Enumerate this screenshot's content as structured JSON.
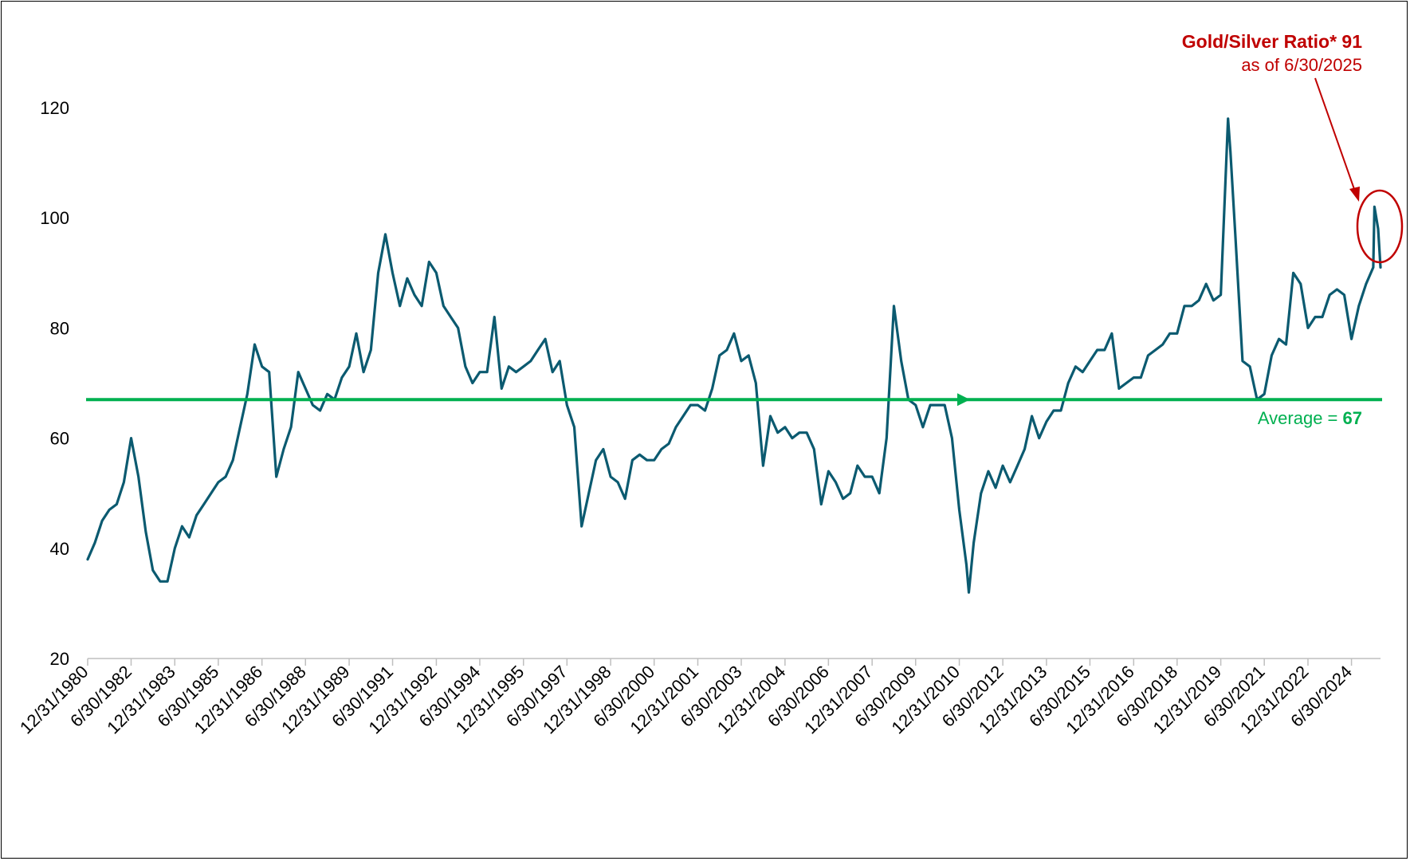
{
  "chart_data": {
    "type": "line",
    "title": "",
    "xlabel": "",
    "ylabel": "",
    "ylim": [
      20,
      125
    ],
    "yticks": [
      20,
      40,
      60,
      80,
      100,
      120
    ],
    "x_start": "12/31/1980",
    "x_end": "6/30/2025",
    "x_tick_labels": [
      "12/31/1980",
      "6/30/1982",
      "12/31/1983",
      "6/30/1985",
      "12/31/1986",
      "6/30/1988",
      "12/31/1989",
      "6/30/1991",
      "12/31/1992",
      "6/30/1994",
      "12/31/1995",
      "6/30/1997",
      "12/31/1998",
      "6/30/2000",
      "12/31/2001",
      "6/30/2003",
      "12/31/2004",
      "6/30/2006",
      "12/31/2007",
      "6/30/2009",
      "12/31/2010",
      "6/30/2012",
      "12/31/2013",
      "6/30/2015",
      "12/31/2016",
      "6/30/2018",
      "12/31/2019",
      "6/30/2021",
      "12/31/2022",
      "6/30/2024"
    ],
    "grid": false,
    "series": [
      {
        "color": "#0b5a70",
        "points": [
          [
            "1980-12-31",
            38
          ],
          [
            "1981-03-31",
            41
          ],
          [
            "1981-06-30",
            45
          ],
          [
            "1981-09-30",
            47
          ],
          [
            "1981-12-31",
            48
          ],
          [
            "1982-03-31",
            52
          ],
          [
            "1982-06-30",
            60
          ],
          [
            "1982-09-30",
            53
          ],
          [
            "1982-12-31",
            43
          ],
          [
            "1983-03-31",
            36
          ],
          [
            "1983-06-30",
            34
          ],
          [
            "1983-09-30",
            34
          ],
          [
            "1983-12-31",
            40
          ],
          [
            "1984-03-31",
            44
          ],
          [
            "1984-06-30",
            42
          ],
          [
            "1984-09-30",
            46
          ],
          [
            "1984-12-31",
            48
          ],
          [
            "1985-03-31",
            50
          ],
          [
            "1985-06-30",
            52
          ],
          [
            "1985-09-30",
            53
          ],
          [
            "1985-12-31",
            56
          ],
          [
            "1986-03-31",
            62
          ],
          [
            "1986-06-30",
            68
          ],
          [
            "1986-09-30",
            77
          ],
          [
            "1986-12-31",
            73
          ],
          [
            "1987-03-31",
            72
          ],
          [
            "1987-06-30",
            53
          ],
          [
            "1987-09-30",
            58
          ],
          [
            "1987-12-31",
            62
          ],
          [
            "1988-03-31",
            72
          ],
          [
            "1988-06-30",
            69
          ],
          [
            "1988-09-30",
            66
          ],
          [
            "1988-12-31",
            65
          ],
          [
            "1989-03-31",
            68
          ],
          [
            "1989-06-30",
            67
          ],
          [
            "1989-09-30",
            71
          ],
          [
            "1989-12-31",
            73
          ],
          [
            "1990-03-31",
            79
          ],
          [
            "1990-06-30",
            72
          ],
          [
            "1990-09-30",
            76
          ],
          [
            "1990-12-31",
            90
          ],
          [
            "1991-03-31",
            97
          ],
          [
            "1991-06-30",
            90
          ],
          [
            "1991-09-30",
            84
          ],
          [
            "1991-12-31",
            89
          ],
          [
            "1992-03-31",
            86
          ],
          [
            "1992-06-30",
            84
          ],
          [
            "1992-09-30",
            92
          ],
          [
            "1992-12-31",
            90
          ],
          [
            "1993-03-31",
            84
          ],
          [
            "1993-06-30",
            82
          ],
          [
            "1993-09-30",
            80
          ],
          [
            "1993-12-31",
            73
          ],
          [
            "1994-03-31",
            70
          ],
          [
            "1994-06-30",
            72
          ],
          [
            "1994-09-30",
            72
          ],
          [
            "1994-12-31",
            82
          ],
          [
            "1995-03-31",
            69
          ],
          [
            "1995-06-30",
            73
          ],
          [
            "1995-09-30",
            72
          ],
          [
            "1995-12-31",
            73
          ],
          [
            "1996-03-31",
            74
          ],
          [
            "1996-06-30",
            76
          ],
          [
            "1996-09-30",
            78
          ],
          [
            "1996-12-31",
            72
          ],
          [
            "1997-03-31",
            74
          ],
          [
            "1997-06-30",
            66
          ],
          [
            "1997-09-30",
            62
          ],
          [
            "1997-12-31",
            44
          ],
          [
            "1998-03-31",
            50
          ],
          [
            "1998-06-30",
            56
          ],
          [
            "1998-09-30",
            58
          ],
          [
            "1998-12-31",
            53
          ],
          [
            "1999-03-31",
            52
          ],
          [
            "1999-06-30",
            49
          ],
          [
            "1999-09-30",
            56
          ],
          [
            "1999-12-31",
            57
          ],
          [
            "2000-03-31",
            56
          ],
          [
            "2000-06-30",
            56
          ],
          [
            "2000-09-30",
            58
          ],
          [
            "2000-12-31",
            59
          ],
          [
            "2001-03-31",
            62
          ],
          [
            "2001-06-30",
            64
          ],
          [
            "2001-09-30",
            66
          ],
          [
            "2001-12-31",
            66
          ],
          [
            "2002-03-31",
            65
          ],
          [
            "2002-06-30",
            69
          ],
          [
            "2002-09-30",
            75
          ],
          [
            "2002-12-31",
            76
          ],
          [
            "2003-03-31",
            79
          ],
          [
            "2003-06-30",
            74
          ],
          [
            "2003-09-30",
            75
          ],
          [
            "2003-12-31",
            70
          ],
          [
            "2004-03-31",
            55
          ],
          [
            "2004-06-30",
            64
          ],
          [
            "2004-09-30",
            61
          ],
          [
            "2004-12-31",
            62
          ],
          [
            "2005-03-31",
            60
          ],
          [
            "2005-06-30",
            61
          ],
          [
            "2005-09-30",
            61
          ],
          [
            "2005-12-31",
            58
          ],
          [
            "2006-03-31",
            48
          ],
          [
            "2006-06-30",
            54
          ],
          [
            "2006-09-30",
            52
          ],
          [
            "2006-12-31",
            49
          ],
          [
            "2007-03-31",
            50
          ],
          [
            "2007-06-30",
            55
          ],
          [
            "2007-09-30",
            53
          ],
          [
            "2007-12-31",
            53
          ],
          [
            "2008-03-31",
            50
          ],
          [
            "2008-06-30",
            60
          ],
          [
            "2008-09-30",
            84
          ],
          [
            "2008-12-31",
            74
          ],
          [
            "2009-03-31",
            67
          ],
          [
            "2009-06-30",
            66
          ],
          [
            "2009-09-30",
            62
          ],
          [
            "2009-12-31",
            66
          ],
          [
            "2010-03-31",
            66
          ],
          [
            "2010-06-30",
            66
          ],
          [
            "2010-09-30",
            60
          ],
          [
            "2010-12-31",
            47
          ],
          [
            "2011-03-31",
            37
          ],
          [
            "2011-04-30",
            32
          ],
          [
            "2011-06-30",
            41
          ],
          [
            "2011-09-30",
            50
          ],
          [
            "2011-12-31",
            54
          ],
          [
            "2012-03-31",
            51
          ],
          [
            "2012-06-30",
            55
          ],
          [
            "2012-09-30",
            52
          ],
          [
            "2012-12-31",
            55
          ],
          [
            "2013-03-31",
            58
          ],
          [
            "2013-06-30",
            64
          ],
          [
            "2013-09-30",
            60
          ],
          [
            "2013-12-31",
            63
          ],
          [
            "2014-03-31",
            65
          ],
          [
            "2014-06-30",
            65
          ],
          [
            "2014-09-30",
            70
          ],
          [
            "2014-12-31",
            73
          ],
          [
            "2015-03-31",
            72
          ],
          [
            "2015-06-30",
            74
          ],
          [
            "2015-09-30",
            76
          ],
          [
            "2015-12-31",
            76
          ],
          [
            "2016-03-31",
            79
          ],
          [
            "2016-06-30",
            69
          ],
          [
            "2016-09-30",
            70
          ],
          [
            "2016-12-31",
            71
          ],
          [
            "2017-03-31",
            71
          ],
          [
            "2017-06-30",
            75
          ],
          [
            "2017-09-30",
            76
          ],
          [
            "2017-12-31",
            77
          ],
          [
            "2018-03-31",
            79
          ],
          [
            "2018-06-30",
            79
          ],
          [
            "2018-09-30",
            84
          ],
          [
            "2018-12-31",
            84
          ],
          [
            "2019-03-31",
            85
          ],
          [
            "2019-06-30",
            88
          ],
          [
            "2019-09-30",
            85
          ],
          [
            "2019-12-31",
            86
          ],
          [
            "2020-03-31",
            118
          ],
          [
            "2020-04-30",
            112
          ],
          [
            "2020-06-30",
            97
          ],
          [
            "2020-09-30",
            74
          ],
          [
            "2020-12-31",
            73
          ],
          [
            "2021-03-31",
            67
          ],
          [
            "2021-06-30",
            68
          ],
          [
            "2021-09-30",
            75
          ],
          [
            "2021-12-31",
            78
          ],
          [
            "2022-03-31",
            77
          ],
          [
            "2022-06-30",
            90
          ],
          [
            "2022-09-30",
            88
          ],
          [
            "2022-12-31",
            80
          ],
          [
            "2023-03-31",
            82
          ],
          [
            "2023-06-30",
            82
          ],
          [
            "2023-09-30",
            86
          ],
          [
            "2023-12-31",
            87
          ],
          [
            "2024-03-31",
            86
          ],
          [
            "2024-06-30",
            78
          ],
          [
            "2024-09-30",
            84
          ],
          [
            "2024-12-31",
            88
          ],
          [
            "2025-03-31",
            91
          ],
          [
            "2025-04-15",
            102
          ],
          [
            "2025-05-31",
            98
          ],
          [
            "2025-06-30",
            91
          ]
        ]
      }
    ],
    "average": {
      "value": 67,
      "label": "Average = ",
      "value_label": "67",
      "color": "#00b050"
    },
    "annotation": {
      "title": "Gold/Silver Ratio* 91",
      "subtitle": "as of 6/30/2025",
      "color": "#c00000"
    }
  }
}
